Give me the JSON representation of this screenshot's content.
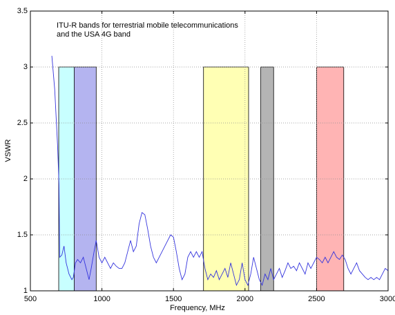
{
  "chart_data": {
    "type": "line",
    "xlabel": "Frequency, MHz",
    "ylabel": "VSWR",
    "annotation": [
      "ITU-R bands for terrestrial mobile telecommunications",
      "and the USA 4G band"
    ],
    "x": [
      650,
      670,
      690,
      700,
      705,
      720,
      735,
      750,
      770,
      790,
      800,
      815,
      830,
      850,
      870,
      890,
      910,
      925,
      945,
      960,
      980,
      1000,
      1020,
      1040,
      1060,
      1080,
      1100,
      1120,
      1140,
      1160,
      1180,
      1200,
      1220,
      1240,
      1260,
      1280,
      1300,
      1320,
      1340,
      1360,
      1380,
      1400,
      1420,
      1440,
      1460,
      1480,
      1500,
      1520,
      1540,
      1560,
      1580,
      1600,
      1620,
      1640,
      1660,
      1680,
      1700,
      1720,
      1740,
      1760,
      1780,
      1800,
      1820,
      1840,
      1860,
      1880,
      1900,
      1920,
      1940,
      1960,
      1980,
      2000,
      2020,
      2040,
      2060,
      2080,
      2100,
      2120,
      2140,
      2160,
      2180,
      2200,
      2220,
      2240,
      2260,
      2280,
      2300,
      2320,
      2340,
      2360,
      2380,
      2400,
      2420,
      2440,
      2460,
      2480,
      2500,
      2520,
      2540,
      2560,
      2580,
      2600,
      2620,
      2640,
      2660,
      2680,
      2700,
      2720,
      2740,
      2760,
      2780,
      2800,
      2820,
      2840,
      2860,
      2880,
      2900,
      2920,
      2940,
      2960,
      2980,
      3000
    ],
    "values": [
      3.1,
      2.8,
      2.3,
      1.95,
      1.3,
      1.32,
      1.4,
      1.25,
      1.15,
      1.1,
      1.12,
      1.25,
      1.28,
      1.25,
      1.3,
      1.2,
      1.1,
      1.2,
      1.35,
      1.45,
      1.3,
      1.25,
      1.3,
      1.25,
      1.2,
      1.25,
      1.22,
      1.2,
      1.2,
      1.25,
      1.35,
      1.45,
      1.35,
      1.4,
      1.6,
      1.7,
      1.68,
      1.55,
      1.4,
      1.3,
      1.25,
      1.3,
      1.35,
      1.4,
      1.45,
      1.5,
      1.48,
      1.35,
      1.2,
      1.1,
      1.15,
      1.3,
      1.35,
      1.3,
      1.35,
      1.3,
      1.35,
      1.2,
      1.1,
      1.15,
      1.12,
      1.18,
      1.1,
      1.15,
      1.2,
      1.12,
      1.25,
      1.15,
      1.05,
      1.1,
      1.25,
      1.1,
      1.05,
      1.15,
      1.3,
      1.2,
      1.1,
      1.05,
      1.15,
      1.1,
      1.2,
      1.1,
      1.15,
      1.2,
      1.12,
      1.18,
      1.25,
      1.2,
      1.22,
      1.18,
      1.25,
      1.2,
      1.15,
      1.25,
      1.2,
      1.25,
      1.3,
      1.28,
      1.25,
      1.3,
      1.25,
      1.3,
      1.35,
      1.3,
      1.28,
      1.32,
      1.28,
      1.2,
      1.15,
      1.2,
      1.25,
      1.18,
      1.15,
      1.12,
      1.1,
      1.12,
      1.1,
      1.12,
      1.1,
      1.15,
      1.2,
      1.18
    ],
    "color": "#3333dd",
    "bands": [
      {
        "x0": 698,
        "x1": 806,
        "top": 3,
        "color": "#c8ffff"
      },
      {
        "x0": 806,
        "x1": 960,
        "top": 3,
        "color": "#b4b4f0"
      },
      {
        "x0": 1710,
        "x1": 2025,
        "top": 3,
        "color": "#ffffb4"
      },
      {
        "x0": 2110,
        "x1": 2200,
        "top": 3,
        "color": "#b4b4b4"
      },
      {
        "x0": 2500,
        "x1": 2690,
        "top": 3,
        "color": "#ffb4b4"
      }
    ],
    "xlim": [
      500,
      3000
    ],
    "ylim": [
      1,
      3.5
    ],
    "xticks": [
      500,
      1000,
      1500,
      2000,
      2500,
      3000
    ],
    "yticks": [
      1,
      1.5,
      2,
      2.5,
      3,
      3.5
    ],
    "grid": true
  }
}
